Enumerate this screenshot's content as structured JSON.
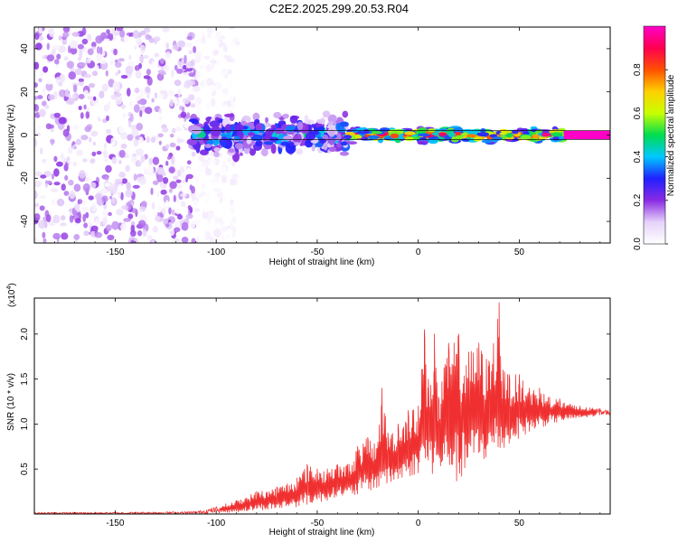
{
  "title": "C2E2.2025.299.20.53.R04",
  "chart_data": [
    {
      "type": "heatmap",
      "name": "spectrogram",
      "xlabel": "Height of straight line (km)",
      "ylabel": "Frequency (Hz)",
      "xlim": [
        -190,
        95
      ],
      "ylim": [
        -50,
        50
      ],
      "xticks": [
        -150,
        -100,
        -50,
        0,
        50
      ],
      "xtick_labels": [
        "-150",
        "-100",
        "-50",
        "0",
        "50"
      ],
      "yticks": [
        -40,
        -20,
        0,
        20,
        40
      ],
      "ytick_labels": [
        "-40",
        "-20",
        "0",
        "20",
        "40"
      ],
      "colorbar": {
        "label": "Normalized spectral amplitude",
        "range": [
          0,
          1
        ],
        "ticks": [
          0.0,
          0.2,
          0.4,
          0.6,
          0.8
        ],
        "tick_labels": [
          "0.0",
          "0.2",
          "0.4",
          "0.6",
          "0.8"
        ],
        "colormap": [
          "#ffffff",
          "#e6d2fa",
          "#8a2be2",
          "#2020ff",
          "#00c8ff",
          "#00dc50",
          "#c8ff00",
          "#ffd000",
          "#ff5000",
          "#ff0050",
          "#ff00c8"
        ]
      },
      "regions": [
        {
          "description": "noise",
          "x_range": [
            -190,
            -110
          ],
          "freq_range": [
            -50,
            50
          ],
          "amplitude": [
            0.0,
            0.2
          ]
        },
        {
          "description": "noise",
          "x_range": [
            -110,
            -90
          ],
          "freq_range": [
            -50,
            50
          ],
          "amplitude": [
            0.0,
            0.05
          ]
        },
        {
          "description": "broadening signal",
          "x_range": [
            -112,
            -35
          ],
          "freq_range": [
            -12,
            12
          ],
          "amplitude": [
            0.1,
            0.5
          ]
        },
        {
          "description": "narrow signal",
          "x_range": [
            -35,
            72
          ],
          "freq_range": [
            -4,
            4
          ],
          "amplitude": [
            0.3,
            1.0
          ]
        }
      ],
      "line_band": {
        "x_range": [
          72,
          95
        ],
        "freq": 0,
        "half_width": 2,
        "amplitude": 1.0
      },
      "band_markers": {
        "x_range": [
          -112,
          95
        ],
        "freqs": [
          -2,
          2
        ],
        "color": "#000000"
      }
    },
    {
      "type": "line",
      "name": "snr",
      "xlabel": "Height of straight line (km)",
      "ylabel": "SNR (10 * v/v)",
      "y_scale_label": "(x10",
      "y_scale_exp": "4",
      "y_scale_suffix": ")",
      "xlim": [
        -190,
        95
      ],
      "ylim": [
        0,
        2.4
      ],
      "xticks": [
        -150,
        -100,
        -50,
        0,
        50
      ],
      "xtick_labels": [
        "-150",
        "-100",
        "-50",
        "0",
        "50"
      ],
      "yticks": [
        0.5,
        1.0,
        1.5,
        2.0
      ],
      "ytick_labels": [
        "0.5",
        "1.0",
        "1.5",
        "2.0"
      ],
      "series": [
        {
          "name": "SNR",
          "color": "#f03030",
          "x": [
            -190,
            -150,
            -110,
            -100,
            -90,
            -80,
            -70,
            -60,
            -55,
            -50,
            -45,
            -40,
            -35,
            -30,
            -25,
            -20,
            -18,
            -15,
            -10,
            -5,
            0,
            3,
            5,
            8,
            10,
            15,
            20,
            25,
            30,
            35,
            40,
            42,
            45,
            50,
            55,
            60,
            65,
            70,
            75,
            80,
            85,
            90,
            95
          ],
          "values": [
            0.02,
            0.02,
            0.03,
            0.08,
            0.15,
            0.25,
            0.3,
            0.4,
            0.55,
            0.5,
            0.5,
            0.55,
            0.55,
            0.75,
            0.85,
            0.8,
            1.4,
            0.9,
            1.0,
            1.15,
            1.2,
            2.05,
            1.5,
            2.0,
            1.3,
            1.9,
            2.0,
            1.8,
            1.9,
            1.7,
            2.35,
            1.6,
            1.55,
            1.55,
            1.4,
            1.4,
            1.3,
            1.28,
            1.22,
            1.2,
            1.18,
            1.17,
            1.15
          ],
          "min_values": [
            0.0,
            0.0,
            0.0,
            0.01,
            0.02,
            0.04,
            0.05,
            0.08,
            0.1,
            0.12,
            0.15,
            0.2,
            0.18,
            0.2,
            0.25,
            0.28,
            0.3,
            0.32,
            0.35,
            0.4,
            0.45,
            0.45,
            0.5,
            0.4,
            0.45,
            0.5,
            0.3,
            0.5,
            0.55,
            0.6,
            0.6,
            0.7,
            0.75,
            0.85,
            0.9,
            0.95,
            1.0,
            1.02,
            1.05,
            1.06,
            1.08,
            1.1,
            1.1
          ]
        }
      ]
    }
  ]
}
